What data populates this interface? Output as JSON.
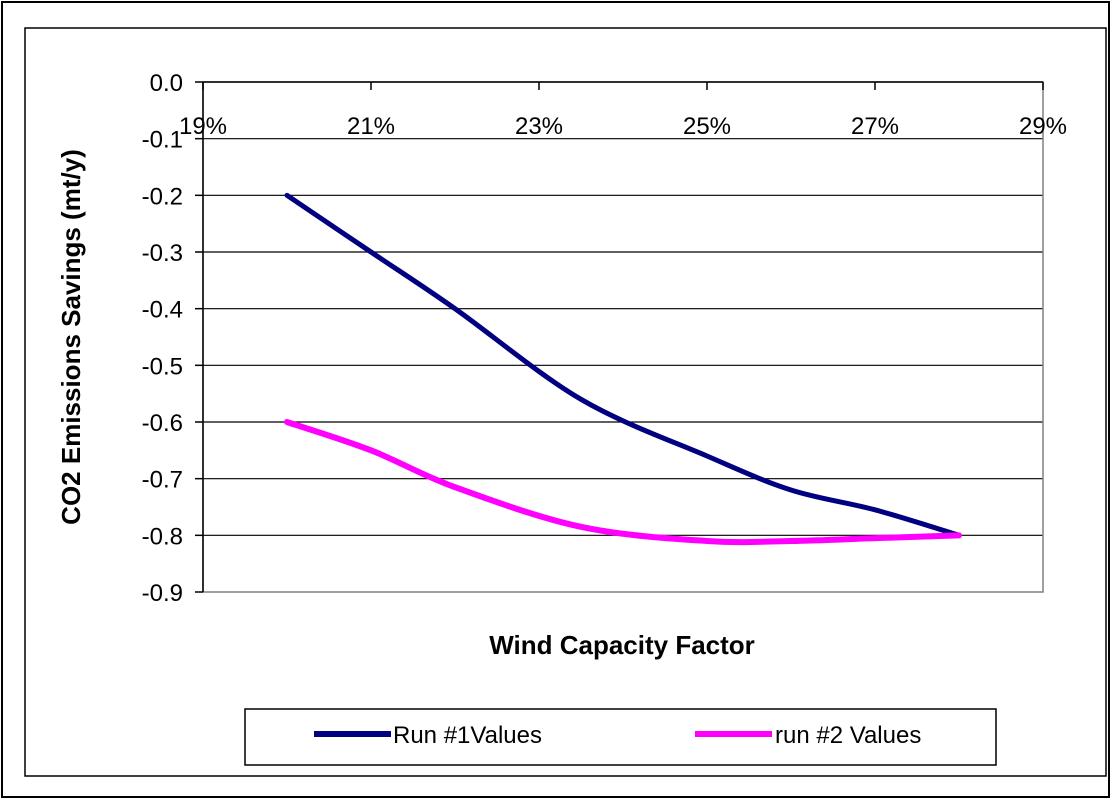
{
  "chart_data": {
    "type": "line",
    "title": "",
    "xlabel": "Wind Capacity Factor",
    "ylabel": "CO2 Emissions Savings (mt/y)",
    "xlim": [
      0.19,
      0.29
    ],
    "ylim": [
      -0.9,
      0.0
    ],
    "x_ticks": [
      0.19,
      0.21,
      0.23,
      0.25,
      0.27,
      0.29
    ],
    "x_tick_labels": [
      "19%",
      "21%",
      "23%",
      "25%",
      "27%",
      "29%"
    ],
    "y_ticks": [
      0.0,
      -0.1,
      -0.2,
      -0.3,
      -0.4,
      -0.5,
      -0.6,
      -0.7,
      -0.8,
      -0.9
    ],
    "y_tick_labels": [
      "0.0",
      "-0.1",
      "-0.2",
      "-0.3",
      "-0.4",
      "-0.5",
      "-0.6",
      "-0.7",
      "-0.8",
      "-0.9"
    ],
    "grid": "horizontal",
    "legend_position": "bottom",
    "series": [
      {
        "name": "Run #1Values",
        "color": "#000080",
        "x": [
          0.2,
          0.21,
          0.22,
          0.235,
          0.25,
          0.26,
          0.27,
          0.28
        ],
        "y": [
          -0.2,
          -0.3,
          -0.4,
          -0.56,
          -0.66,
          -0.72,
          -0.755,
          -0.8
        ]
      },
      {
        "name": "run #2 Values",
        "color": "#FF00FF",
        "x": [
          0.2,
          0.21,
          0.22,
          0.235,
          0.25,
          0.26,
          0.27,
          0.28
        ],
        "y": [
          -0.6,
          -0.65,
          -0.715,
          -0.785,
          -0.81,
          -0.81,
          -0.805,
          -0.8
        ]
      }
    ]
  }
}
